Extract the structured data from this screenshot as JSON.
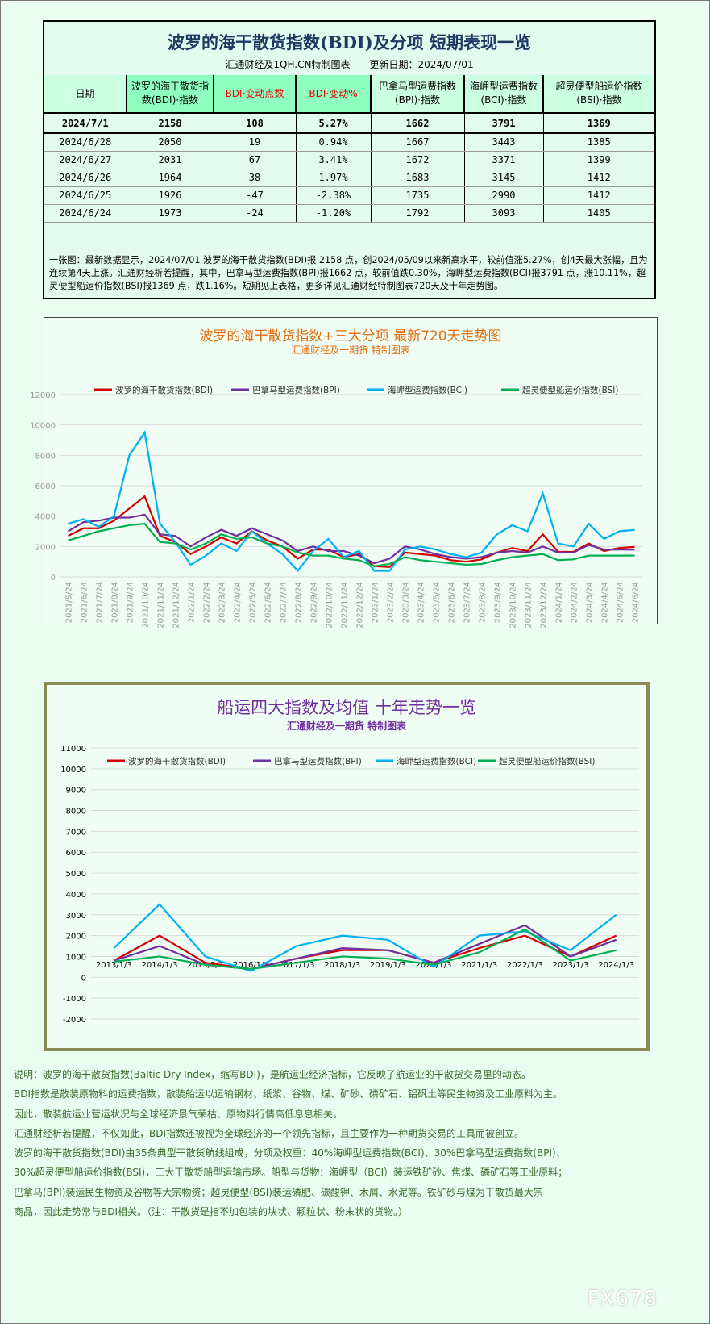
{
  "table": {
    "title": "波罗的海干散货指数(BDI)及分项 短期表现一览",
    "subtitle": "汇通财经及1QH.CN特制图表　　更新日期：2024/07/01",
    "headers": [
      "日期",
      "波罗的海干散货指数(BDI)·指数",
      "BDI·变动点数",
      "BDI·变动%",
      "巴拿马型运费指数(BPI)·指数",
      "海岬型运费指数(BCI)·指数",
      "超灵便型船运价指数(BSI)·指数"
    ],
    "rows": [
      [
        "2024/7/1",
        "2158",
        "108",
        "5.27%",
        "1662",
        "3791",
        "1369"
      ],
      [
        "2024/6/28",
        "2050",
        "19",
        "0.94%",
        "1667",
        "3443",
        "1385"
      ],
      [
        "2024/6/27",
        "2031",
        "67",
        "3.41%",
        "1672",
        "3371",
        "1399"
      ],
      [
        "2024/6/26",
        "1964",
        "38",
        "1.97%",
        "1683",
        "3145",
        "1412"
      ],
      [
        "2024/6/25",
        "1926",
        "-47",
        "-2.38%",
        "1735",
        "2990",
        "1412"
      ],
      [
        "2024/6/24",
        "1973",
        "-24",
        "-1.20%",
        "1792",
        "3093",
        "1405"
      ]
    ],
    "note": "一张图：最新数据显示，2024/07/01 波罗的海干散货指数(BDI)报 2158 点，创2024/05/09以来新高水平，较前值涨5.27%，创4天最大涨幅，且为连续第4天上涨。汇通财经析若提醒，其中，巴拿马型运费指数(BPI)报1662 点，较前值跌0.30%，海岬型运费指数(BCI)报3791 点，涨10.11%，超灵便型船运价指数(BSI)报1369 点，跌1.16%。短期见上表格，更多详见汇通财经特制图表720天及十年走势图。"
  },
  "chart_data": [
    {
      "type": "line",
      "title": "波罗的海干散货指数+三大分项 最新720天走势图",
      "subtitle": "汇通财经及一期货 特制图表",
      "ylim": [
        0,
        12000
      ],
      "yticks": [
        0,
        2000,
        4000,
        6000,
        8000,
        10000,
        12000
      ],
      "legend": "top",
      "categories": [
        "2021/5/24",
        "2021/6/24",
        "2021/7/24",
        "2021/8/24",
        "2021/9/24",
        "2021/10/24",
        "2021/11/24",
        "2021/12/24",
        "2022/1/24",
        "2022/2/24",
        "2022/3/24",
        "2022/4/24",
        "2022/5/24",
        "2022/6/24",
        "2022/7/24",
        "2022/8/24",
        "2022/9/24",
        "2022/10/24",
        "2022/11/24",
        "2022/12/24",
        "2023/1/24",
        "2023/2/24",
        "2023/3/24",
        "2023/4/24",
        "2023/5/24",
        "2023/6/24",
        "2023/7/24",
        "2023/8/24",
        "2023/9/24",
        "2023/10/24",
        "2023/11/24",
        "2023/12/24",
        "2024/1/24",
        "2024/2/24",
        "2024/3/24",
        "2024/4/24",
        "2024/5/24",
        "2024/6/24"
      ],
      "series": [
        {
          "name": "波罗的海干散货指数(BDI)",
          "color": "#d00000",
          "values": [
            2700,
            3200,
            3200,
            3700,
            4500,
            5300,
            2700,
            2300,
            1500,
            2000,
            2600,
            2200,
            3000,
            2400,
            2000,
            1200,
            1800,
            1800,
            1300,
            1500,
            700,
            650,
            1600,
            1500,
            1400,
            1100,
            1000,
            1150,
            1600,
            1900,
            1700,
            2800,
            1650,
            1650,
            2200,
            1700,
            1900,
            1973
          ]
        },
        {
          "name": "巴拿马型运费指数(BPI)",
          "color": "#7030a0",
          "values": [
            3000,
            3600,
            3700,
            3900,
            3900,
            4100,
            2800,
            2700,
            2000,
            2600,
            3100,
            2700,
            3200,
            2800,
            2400,
            1700,
            2000,
            1700,
            1700,
            1400,
            900,
            1200,
            2000,
            1800,
            1500,
            1300,
            1200,
            1300,
            1600,
            1700,
            1600,
            2000,
            1600,
            1600,
            2100,
            1800,
            1800,
            1792
          ]
        },
        {
          "name": "海岬型运费指数(BCI)",
          "color": "#00b0f0",
          "values": [
            3500,
            3800,
            3300,
            4000,
            8000,
            9500,
            3500,
            2300,
            800,
            1400,
            2200,
            1700,
            3000,
            2200,
            1500,
            400,
            1700,
            2500,
            1300,
            1700,
            400,
            400,
            1800,
            2000,
            1800,
            1500,
            1300,
            1600,
            2800,
            3400,
            3000,
            5500,
            2200,
            2000,
            3500,
            2500,
            3000,
            3093
          ]
        },
        {
          "name": "超灵便型船运价指数(BSI)",
          "color": "#00b050",
          "values": [
            2400,
            2700,
            3000,
            3200,
            3400,
            3500,
            2300,
            2200,
            1800,
            2200,
            2800,
            2500,
            2600,
            2200,
            2000,
            1600,
            1400,
            1400,
            1200,
            1100,
            700,
            850,
            1300,
            1100,
            1000,
            900,
            800,
            850,
            1100,
            1300,
            1400,
            1500,
            1100,
            1150,
            1400,
            1400,
            1400,
            1405
          ]
        }
      ]
    },
    {
      "type": "line",
      "title": "船运四大指数及均值 十年走势一览",
      "subtitle": "汇通财经及一期货 特制图表",
      "ylim": [
        -2000,
        11000
      ],
      "yticks": [
        -2000,
        -1000,
        0,
        1000,
        2000,
        3000,
        4000,
        5000,
        6000,
        7000,
        8000,
        9000,
        10000,
        11000
      ],
      "legend": "top",
      "categories": [
        "2013/1/3",
        "2014/1/3",
        "2015/1/3",
        "2016/1/3",
        "2017/1/3",
        "2018/1/3",
        "2019/1/3",
        "2020/1/3",
        "2021/1/3",
        "2022/1/3",
        "2023/1/3",
        "2024/1/3"
      ],
      "series": [
        {
          "name": "波罗的海干散货指数(BDI)",
          "color": "#d00000",
          "values": [
            800,
            2000,
            700,
            400,
            900,
            1300,
            1300,
            700,
            1400,
            2000,
            1000,
            2000
          ]
        },
        {
          "name": "巴拿马型运费指数(BPI)",
          "color": "#7030a0",
          "values": [
            800,
            1500,
            600,
            400,
            900,
            1400,
            1300,
            700,
            1600,
            2500,
            1000,
            1800
          ]
        },
        {
          "name": "海岬型运费指数(BCI)",
          "color": "#00b0f0",
          "values": [
            1400,
            3500,
            1000,
            300,
            1500,
            2000,
            1800,
            500,
            2000,
            2200,
            1300,
            3000
          ]
        },
        {
          "name": "超灵便型船运价指数(BSI)",
          "color": "#00b050",
          "values": [
            750,
            1000,
            600,
            400,
            700,
            1000,
            900,
            600,
            1200,
            2300,
            800,
            1300
          ]
        }
      ]
    }
  ],
  "description": [
    "说明：波罗的海干散货指数(Baltic Dry Index，缩写BDI)，是航运业经济指标，它反映了航运业的干散货交易里的动态。",
    "BDI指数是散装原物料的运费指数，散装船运以运输钢材、纸浆、谷物、煤、矿砂、磷矿石、铝矾土等民生物资及工业原料为主。",
    "因此，散装航运业营运状况与全球经济景气荣枯、原物料行情高低息息相关。",
    "汇通财经析若提醒，不仅如此，BDI指数还被视为全球经济的一个领先指标，且主要作为一种期货交易的工具而被创立。",
    "波罗的海干散货指数(BDI)由35条典型干散货航线组成，分项及权重：40%海岬型运费指数(BCI)、30%巴拿马型运费指数(BPI)、",
    "30%超灵便型船运价指数(BSI)，三大干散货船型运输市场。船型与货物：海岬型（BCI）装运铁矿砂、焦煤、磷矿石等工业原料；",
    "巴拿马(BPI)装运民生物资及谷物等大宗物资；超灵便型(BSI)装运磷肥、碳酸钾、木屑、水泥等。铁矿砂与煤为干散货最大宗",
    "商品，因此走势常与BDI相关。（注：干散货是指不加包装的块状、颗粒状、粉末状的货物。）"
  ],
  "watermark": "FX678"
}
